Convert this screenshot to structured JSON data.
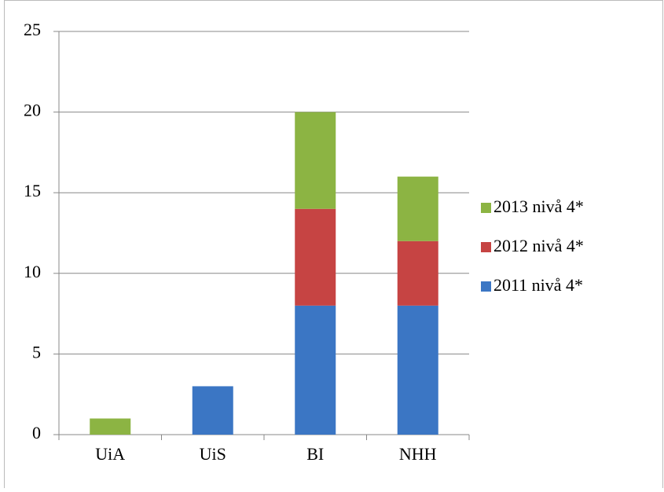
{
  "chart_data": {
    "type": "bar",
    "stacked": true,
    "categories": [
      "UiA",
      "UiS",
      "BI",
      "NHH"
    ],
    "series": [
      {
        "name": "2011 nivå 4*",
        "color": "#3b76c4",
        "values": [
          0,
          3,
          8,
          8
        ]
      },
      {
        "name": "2012 nivå 4*",
        "color": "#c64443",
        "values": [
          0,
          0,
          6,
          4
        ]
      },
      {
        "name": "2013 nivå 4*",
        "color": "#8cb443",
        "values": [
          1,
          0,
          6,
          4
        ]
      }
    ],
    "ylim": [
      0,
      25
    ],
    "yticks": [
      0,
      5,
      10,
      15,
      20,
      25
    ],
    "grid": true,
    "legend": "right"
  }
}
